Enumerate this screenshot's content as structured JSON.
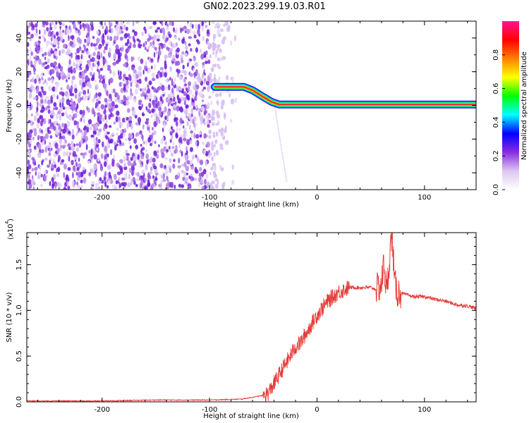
{
  "title": "GN02.2023.299.19.03.R01",
  "chart_data": [
    {
      "type": "heatmap",
      "xlabel": "Height of straight line (km)",
      "ylabel": "Frequency (Hz)",
      "xlim": [
        -270,
        148
      ],
      "ylim": [
        -50,
        50
      ],
      "x_ticks": [
        -200,
        -100,
        0,
        100
      ],
      "x_tick_labels": [
        "-200",
        "-100",
        "0",
        "100"
      ],
      "y_ticks": [
        -40,
        -20,
        0,
        20,
        40
      ],
      "y_tick_labels": [
        "-40",
        "-20",
        "0",
        "20",
        "40"
      ],
      "noise_region_x": [
        -270,
        -75
      ],
      "signal_track": {
        "x": [
          -95,
          -80,
          -68,
          -60,
          -50,
          -42,
          -35,
          -28,
          -20,
          -10,
          0,
          25,
          50,
          75,
          100,
          125,
          148
        ],
        "y": [
          11,
          11,
          11,
          9,
          5,
          2,
          0.5,
          0.5,
          0.5,
          0.5,
          0.5,
          0.5,
          0.5,
          0.5,
          0.5,
          0.5,
          0.5
        ]
      },
      "colorbar": {
        "label": "Normalized spectral amplitude",
        "ticks": [
          0.0,
          0.2,
          0.4,
          0.6,
          0.8
        ],
        "tick_labels": [
          "0.0",
          "0.2",
          "0.4",
          "0.6",
          "0.8"
        ],
        "range": [
          0,
          1
        ],
        "colors": [
          "#ffffff",
          "#dcc6f0",
          "#8a2be2",
          "#0000ff",
          "#00ffff",
          "#00ff00",
          "#ffff00",
          "#ff8000",
          "#ff0000",
          "#ff1493"
        ]
      }
    },
    {
      "type": "line",
      "xlabel": "Height of straight line (km)",
      "ylabel": "SNR (10 * v/v)",
      "y_multiplier_label": "(x10",
      "y_multiplier_exp": "4",
      "xlim": [
        -270,
        148
      ],
      "ylim": [
        0,
        1.85
      ],
      "x_ticks": [
        -200,
        -100,
        0,
        100
      ],
      "x_tick_labels": [
        "-200",
        "-100",
        "0",
        "100"
      ],
      "y_ticks": [
        0.0,
        0.5,
        1.0,
        1.5
      ],
      "y_tick_labels": [
        "0.0",
        "0.5",
        "1.0",
        "1.5"
      ],
      "line_color": "#e53935",
      "series": [
        {
          "x": [
            -270,
            -200,
            -150,
            -100,
            -70,
            -60,
            -50,
            -45,
            -40,
            -35,
            -30,
            -25,
            -20,
            -15,
            -10,
            -5,
            0,
            10,
            20,
            30,
            40,
            50,
            55,
            60,
            62,
            65,
            68,
            70,
            72,
            75,
            80,
            90,
            100,
            110,
            120,
            130,
            140,
            148
          ],
          "values": [
            0.01,
            0.01,
            0.02,
            0.02,
            0.03,
            0.05,
            0.07,
            0.1,
            0.2,
            0.3,
            0.4,
            0.5,
            0.6,
            0.65,
            0.75,
            0.85,
            0.95,
            1.1,
            1.2,
            1.25,
            1.25,
            1.25,
            1.23,
            1.28,
            1.5,
            1.2,
            1.65,
            1.85,
            1.3,
            1.2,
            1.18,
            1.15,
            1.15,
            1.12,
            1.1,
            1.06,
            1.05,
            1.02
          ]
        }
      ]
    }
  ]
}
